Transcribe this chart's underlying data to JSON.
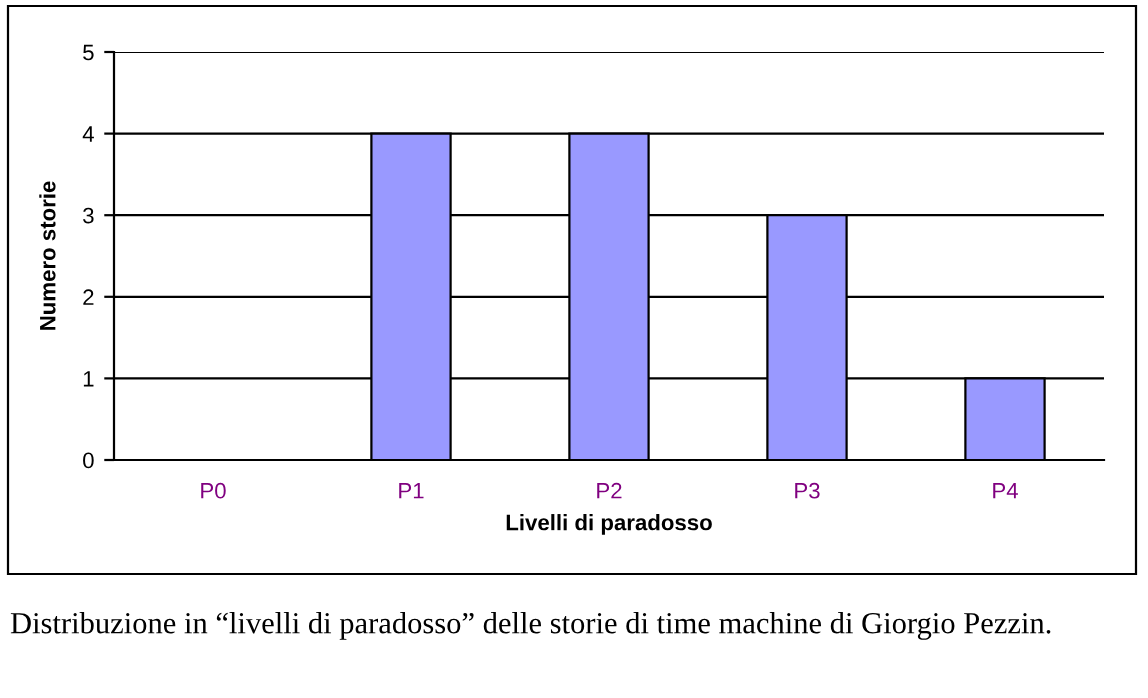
{
  "chart_data": {
    "type": "bar",
    "xlabel": "Livelli di paradosso",
    "ylabel": "Numero storie",
    "categories": [
      "P0",
      "P1",
      "P2",
      "P3",
      "P4"
    ],
    "values": [
      0,
      4,
      4,
      3,
      1
    ],
    "color": "#9999ff",
    "ylim": [
      0,
      5
    ],
    "yticks": [
      0,
      1,
      2,
      3,
      4,
      5
    ],
    "grid": "y",
    "legend": false,
    "annotations": [
      "Distribuzione in “livelli di paradosso” delle storie di time machine di Giorgio Pezzin."
    ]
  }
}
